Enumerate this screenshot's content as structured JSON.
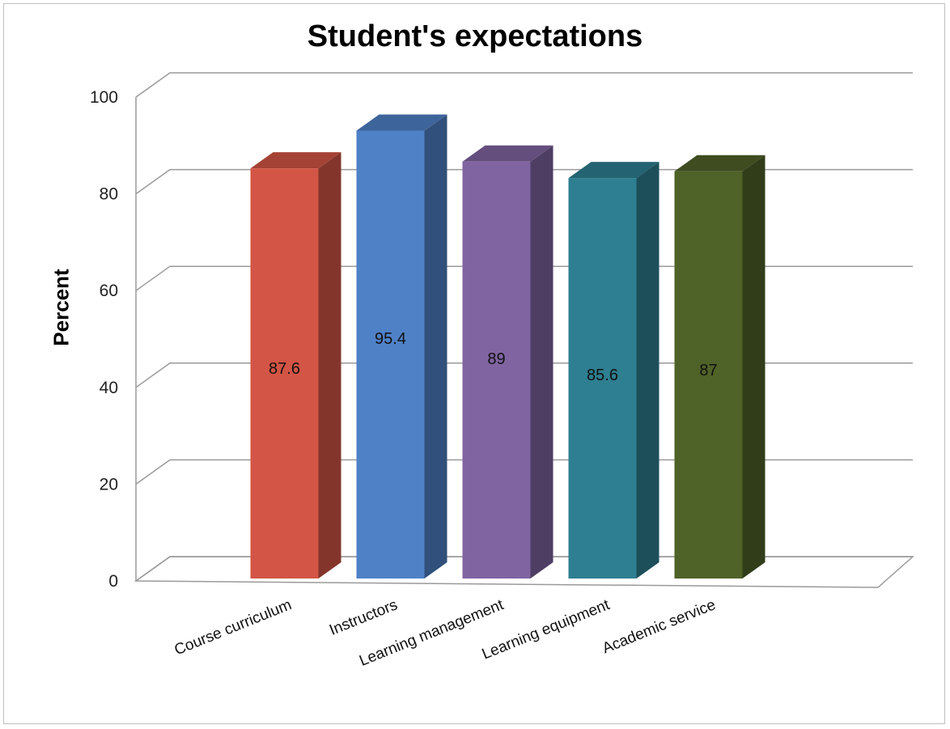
{
  "chart_data": {
    "type": "bar",
    "title": "Student's expectations",
    "xlabel": "",
    "ylabel": "Percent",
    "categories": [
      "Course curriculum",
      "Instructors",
      "Learning management",
      "Learning equipment",
      "Academic service"
    ],
    "values": [
      87.6,
      95.4,
      89,
      85.6,
      87
    ],
    "data_labels": [
      "87.6",
      "95.4",
      "89",
      "85.6",
      "87"
    ],
    "ylim": [
      0,
      100
    ],
    "yticks": [
      "0",
      "20",
      "40",
      "60",
      "80",
      "100"
    ],
    "grid": true,
    "legend": "none",
    "style": "3d-column",
    "colors": [
      "#d35545",
      "#4f81c7",
      "#8064a2",
      "#2e7f91",
      "#4f6228"
    ]
  }
}
